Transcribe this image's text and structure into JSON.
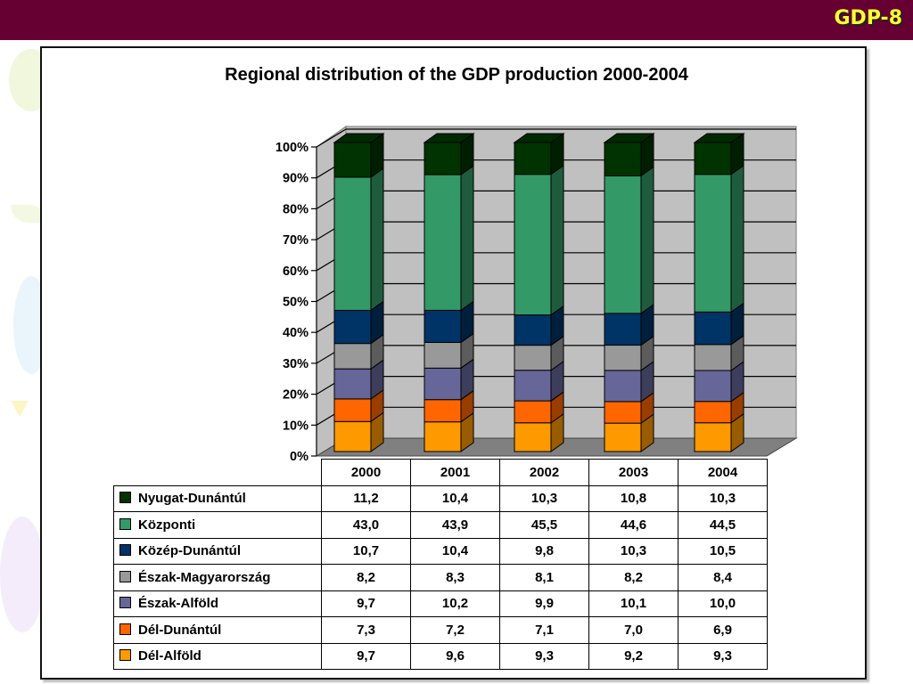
{
  "header": {
    "slide_label": "GDP-8",
    "bar_color": "#660033",
    "label_color": "#ffff33"
  },
  "chart_data": {
    "type": "bar",
    "stacked": "percent",
    "style": "3d",
    "title": "Regional distribution of the GDP production 2000-2004",
    "xlabel": "",
    "ylabel": "",
    "ylim": [
      0,
      100
    ],
    "yticks": [
      "0%",
      "10%",
      "20%",
      "30%",
      "40%",
      "50%",
      "60%",
      "70%",
      "80%",
      "90%",
      "100%"
    ],
    "grid": true,
    "legend": "data-table-left",
    "categories": [
      "2000",
      "2001",
      "2002",
      "2003",
      "2004"
    ],
    "series": [
      {
        "name": "Dél-Alföld",
        "color": "#ff9900",
        "values": [
          9.7,
          9.6,
          9.3,
          9.2,
          9.3
        ]
      },
      {
        "name": "Dél-Dunántúl",
        "color": "#ff6600",
        "values": [
          7.3,
          7.2,
          7.1,
          7.0,
          6.9
        ]
      },
      {
        "name": "Észak-Alföld",
        "color": "#666699",
        "values": [
          9.7,
          10.2,
          9.9,
          10.1,
          10.0
        ]
      },
      {
        "name": "Észak-Magyarország",
        "color": "#999999",
        "values": [
          8.2,
          8.3,
          8.1,
          8.2,
          8.4
        ]
      },
      {
        "name": "Közép-Dunántúl",
        "color": "#003366",
        "values": [
          10.7,
          10.4,
          9.8,
          10.3,
          10.5
        ]
      },
      {
        "name": "Központi",
        "color": "#339966",
        "values": [
          43.0,
          43.9,
          45.5,
          44.6,
          44.5
        ]
      },
      {
        "name": "Nyugat-Dunántúl",
        "color": "#003300",
        "values": [
          11.2,
          10.4,
          10.3,
          10.8,
          10.3
        ]
      }
    ]
  },
  "table": {
    "row_order": [
      "Nyugat-Dunántúl",
      "Központi",
      "Közép-Dunántúl",
      "Észak-Magyarország",
      "Észak-Alföld",
      "Dél-Dunántúl",
      "Dél-Alföld"
    ],
    "rows": [
      {
        "label": "Nyugat-Dunántúl",
        "color": "#003300",
        "cells": [
          "11,2",
          "10,4",
          "10,3",
          "10,8",
          "10,3"
        ]
      },
      {
        "label": "Központi",
        "color": "#339966",
        "cells": [
          "43,0",
          "43,9",
          "45,5",
          "44,6",
          "44,5"
        ]
      },
      {
        "label": "Közép-Dunántúl",
        "color": "#003366",
        "cells": [
          "10,7",
          "10,4",
          "9,8",
          "10,3",
          "10,5"
        ]
      },
      {
        "label": "Észak-Magyarország",
        "color": "#999999",
        "cells": [
          "8,2",
          "8,3",
          "8,1",
          "8,2",
          "8,4"
        ]
      },
      {
        "label": "Észak-Alföld",
        "color": "#666699",
        "cells": [
          "9,7",
          "10,2",
          "9,9",
          "10,1",
          "10,0"
        ]
      },
      {
        "label": "Dél-Dunántúl",
        "color": "#ff6600",
        "cells": [
          "7,3",
          "7,2",
          "7,1",
          "7,0",
          "6,9"
        ]
      },
      {
        "label": "Dél-Alföld",
        "color": "#ff9900",
        "cells": [
          "9,7",
          "9,6",
          "9,3",
          "9,2",
          "9,3"
        ]
      }
    ]
  }
}
